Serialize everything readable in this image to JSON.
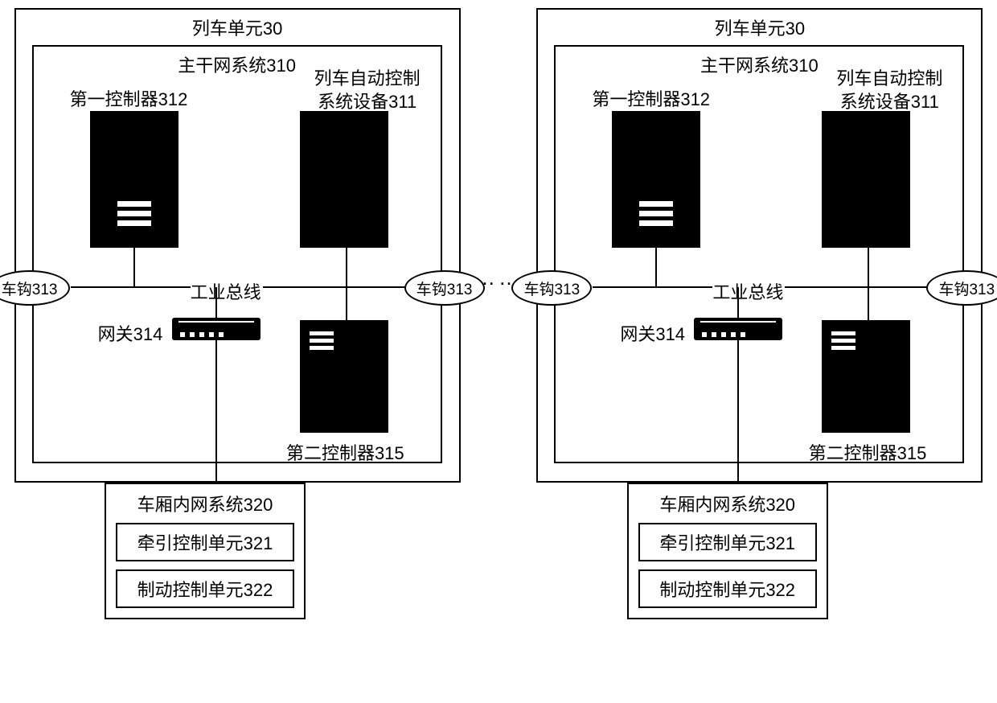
{
  "diagram": {
    "type": "network",
    "colors": {
      "background": "#ffffff",
      "border": "#000000",
      "line": "#000000",
      "device_fill": "#000000",
      "device_stripe": "#ffffff",
      "text": "#000000"
    },
    "fontsize_label": 22,
    "outer_border_width": 2,
    "inner_border_width": 2,
    "line_width": 2
  },
  "separator": "……",
  "unit": {
    "outer_title": "列车单元30",
    "inner_title": "主干网系统310",
    "controller1_label": "第一控制器312",
    "atc_label_line1": "列车自动控制",
    "atc_label_line2": "系统设备311",
    "bus_label": "工业总线",
    "coupler_label": "车钩313",
    "gateway_label": "网关314",
    "controller2_label": "第二控制器315",
    "carriage": {
      "title": "车厢内网系统320",
      "traction": "牵引控制单元321",
      "brake": "制动控制单元322"
    }
  }
}
